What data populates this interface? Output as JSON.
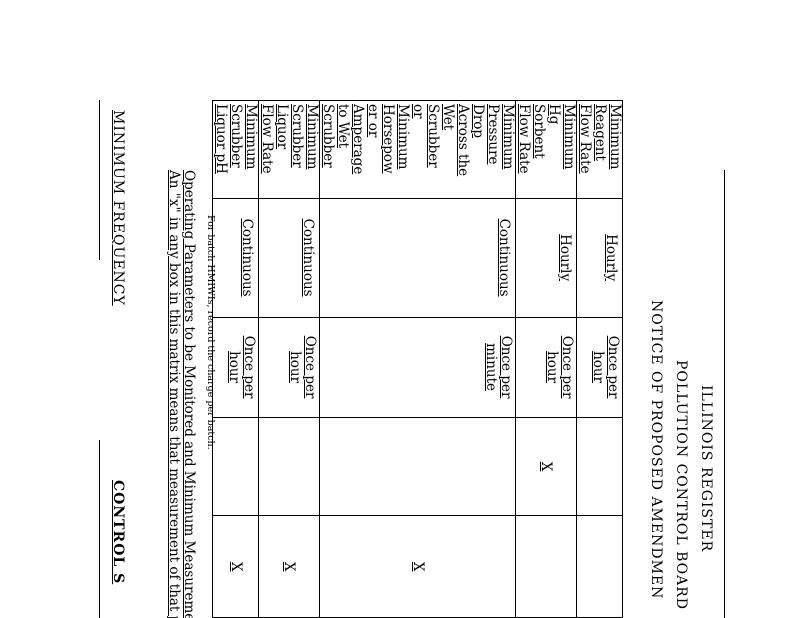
{
  "header": {
    "register": "ILLINOIS REGISTER",
    "board": "POLLUTION CONTROL BOARD",
    "notice": "NOTICE OF PROPOSED AMENDMEN"
  },
  "table": {
    "rows": [
      {
        "parameter": [
          "Minimum",
          "Reagent",
          "Flow Rate"
        ],
        "frequency": "Hourly",
        "recording": [
          "Once per",
          "hour"
        ],
        "col4": "",
        "col5": ""
      },
      {
        "parameter": [
          "Minimum",
          "Hg",
          "Sorbent",
          "Flow Rate"
        ],
        "frequency": "Hourly",
        "recording": [
          "Once per",
          "hour"
        ],
        "col4": "X",
        "col5": ""
      },
      {
        "parameter": [
          "Minimum",
          "Pressure",
          "Drop",
          "Across the",
          "Wet",
          "Scrubber",
          "or",
          "Minimum",
          "Horsepow",
          "er or",
          "Amperage",
          "to Wet",
          "Scrubber"
        ],
        "frequency": "Continuous",
        "recording": [
          "Once per",
          "minute"
        ],
        "col4": "",
        "col5": "X"
      },
      {
        "parameter": [
          "Minimum",
          "Scrubber",
          "Liquor",
          "Flow Rate"
        ],
        "frequency": "Continuous",
        "recording": [
          "Once per",
          "hour"
        ],
        "col4": "",
        "col5": "X"
      },
      {
        "parameter": [
          "Minimum",
          "Scrubber",
          "Liquor pH"
        ],
        "frequency": "Continuous",
        "recording": [
          "Once per",
          "hour"
        ],
        "col4": "",
        "col5": "X"
      }
    ]
  },
  "footnote": "For batch HMIWIs, record the charge per batch.",
  "paragraph": {
    "line1": "Operating Parameters to be Monitored and Minimum Measurement a",
    "line2": "An \"x\" in any box in this matrix means that measurement of that para"
  },
  "bottom": {
    "left": "MINIMUM FREQUENCY",
    "right": "CONTROL S"
  }
}
